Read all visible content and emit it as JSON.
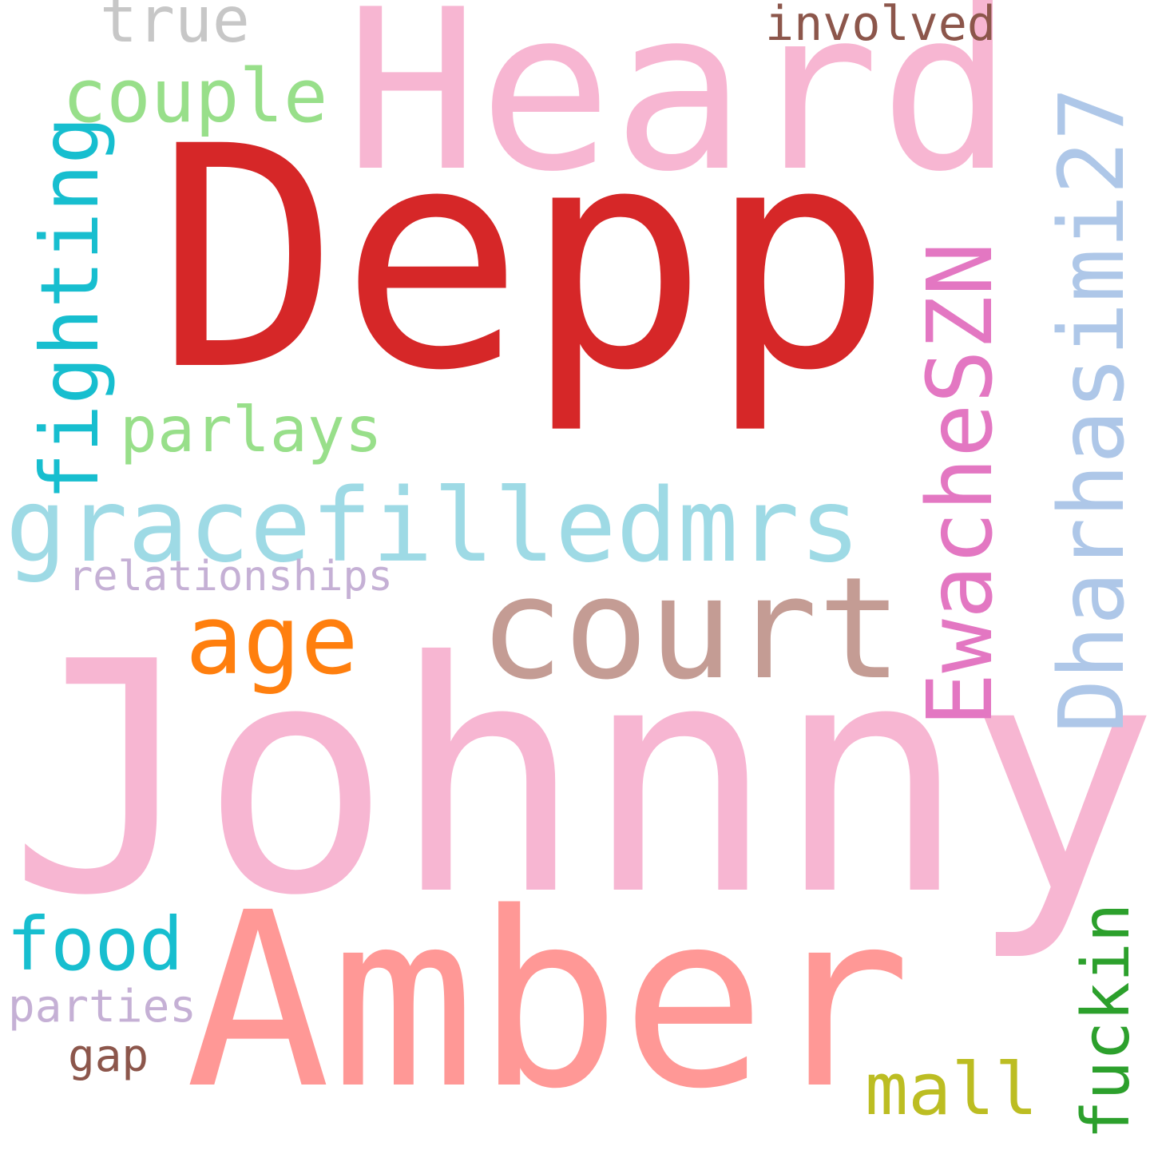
{
  "words": [
    {
      "text": "Depp",
      "color": "#d62728",
      "vertical": false
    },
    {
      "text": "Heard",
      "color": "#f7b6d2",
      "vertical": false
    },
    {
      "text": "Johnny",
      "color": "#f7b6d2",
      "vertical": false
    },
    {
      "text": "Amber",
      "color": "#ff9896",
      "vertical": false
    },
    {
      "text": "court",
      "color": "#c49c94",
      "vertical": false
    },
    {
      "text": "gracefilledmrs",
      "color": "#9edae5",
      "vertical": false
    },
    {
      "text": "EwacheSZN",
      "color": "#e377c2",
      "vertical": true
    },
    {
      "text": "Dharhasimi27",
      "color": "#aec7e8",
      "vertical": true
    },
    {
      "text": "age",
      "color": "#ff7f0e",
      "vertical": false
    },
    {
      "text": "couple",
      "color": "#98df8a",
      "vertical": false
    },
    {
      "text": "fighting",
      "color": "#17becf",
      "vertical": true
    },
    {
      "text": "parlays",
      "color": "#98df8a",
      "vertical": false
    },
    {
      "text": "relationships",
      "color": "#c5b0d5",
      "vertical": false
    },
    {
      "text": "true",
      "color": "#c7c7c7",
      "vertical": false
    },
    {
      "text": "involved",
      "color": "#8c564b",
      "vertical": false
    },
    {
      "text": "food",
      "color": "#17becf",
      "vertical": false
    },
    {
      "text": "parties",
      "color": "#c5b0d5",
      "vertical": false
    },
    {
      "text": "gap",
      "color": "#8c564b",
      "vertical": false
    },
    {
      "text": "mall",
      "color": "#bcbd22",
      "vertical": false
    },
    {
      "text": "fuckin",
      "color": "#2ca02c",
      "vertical": true
    }
  ]
}
